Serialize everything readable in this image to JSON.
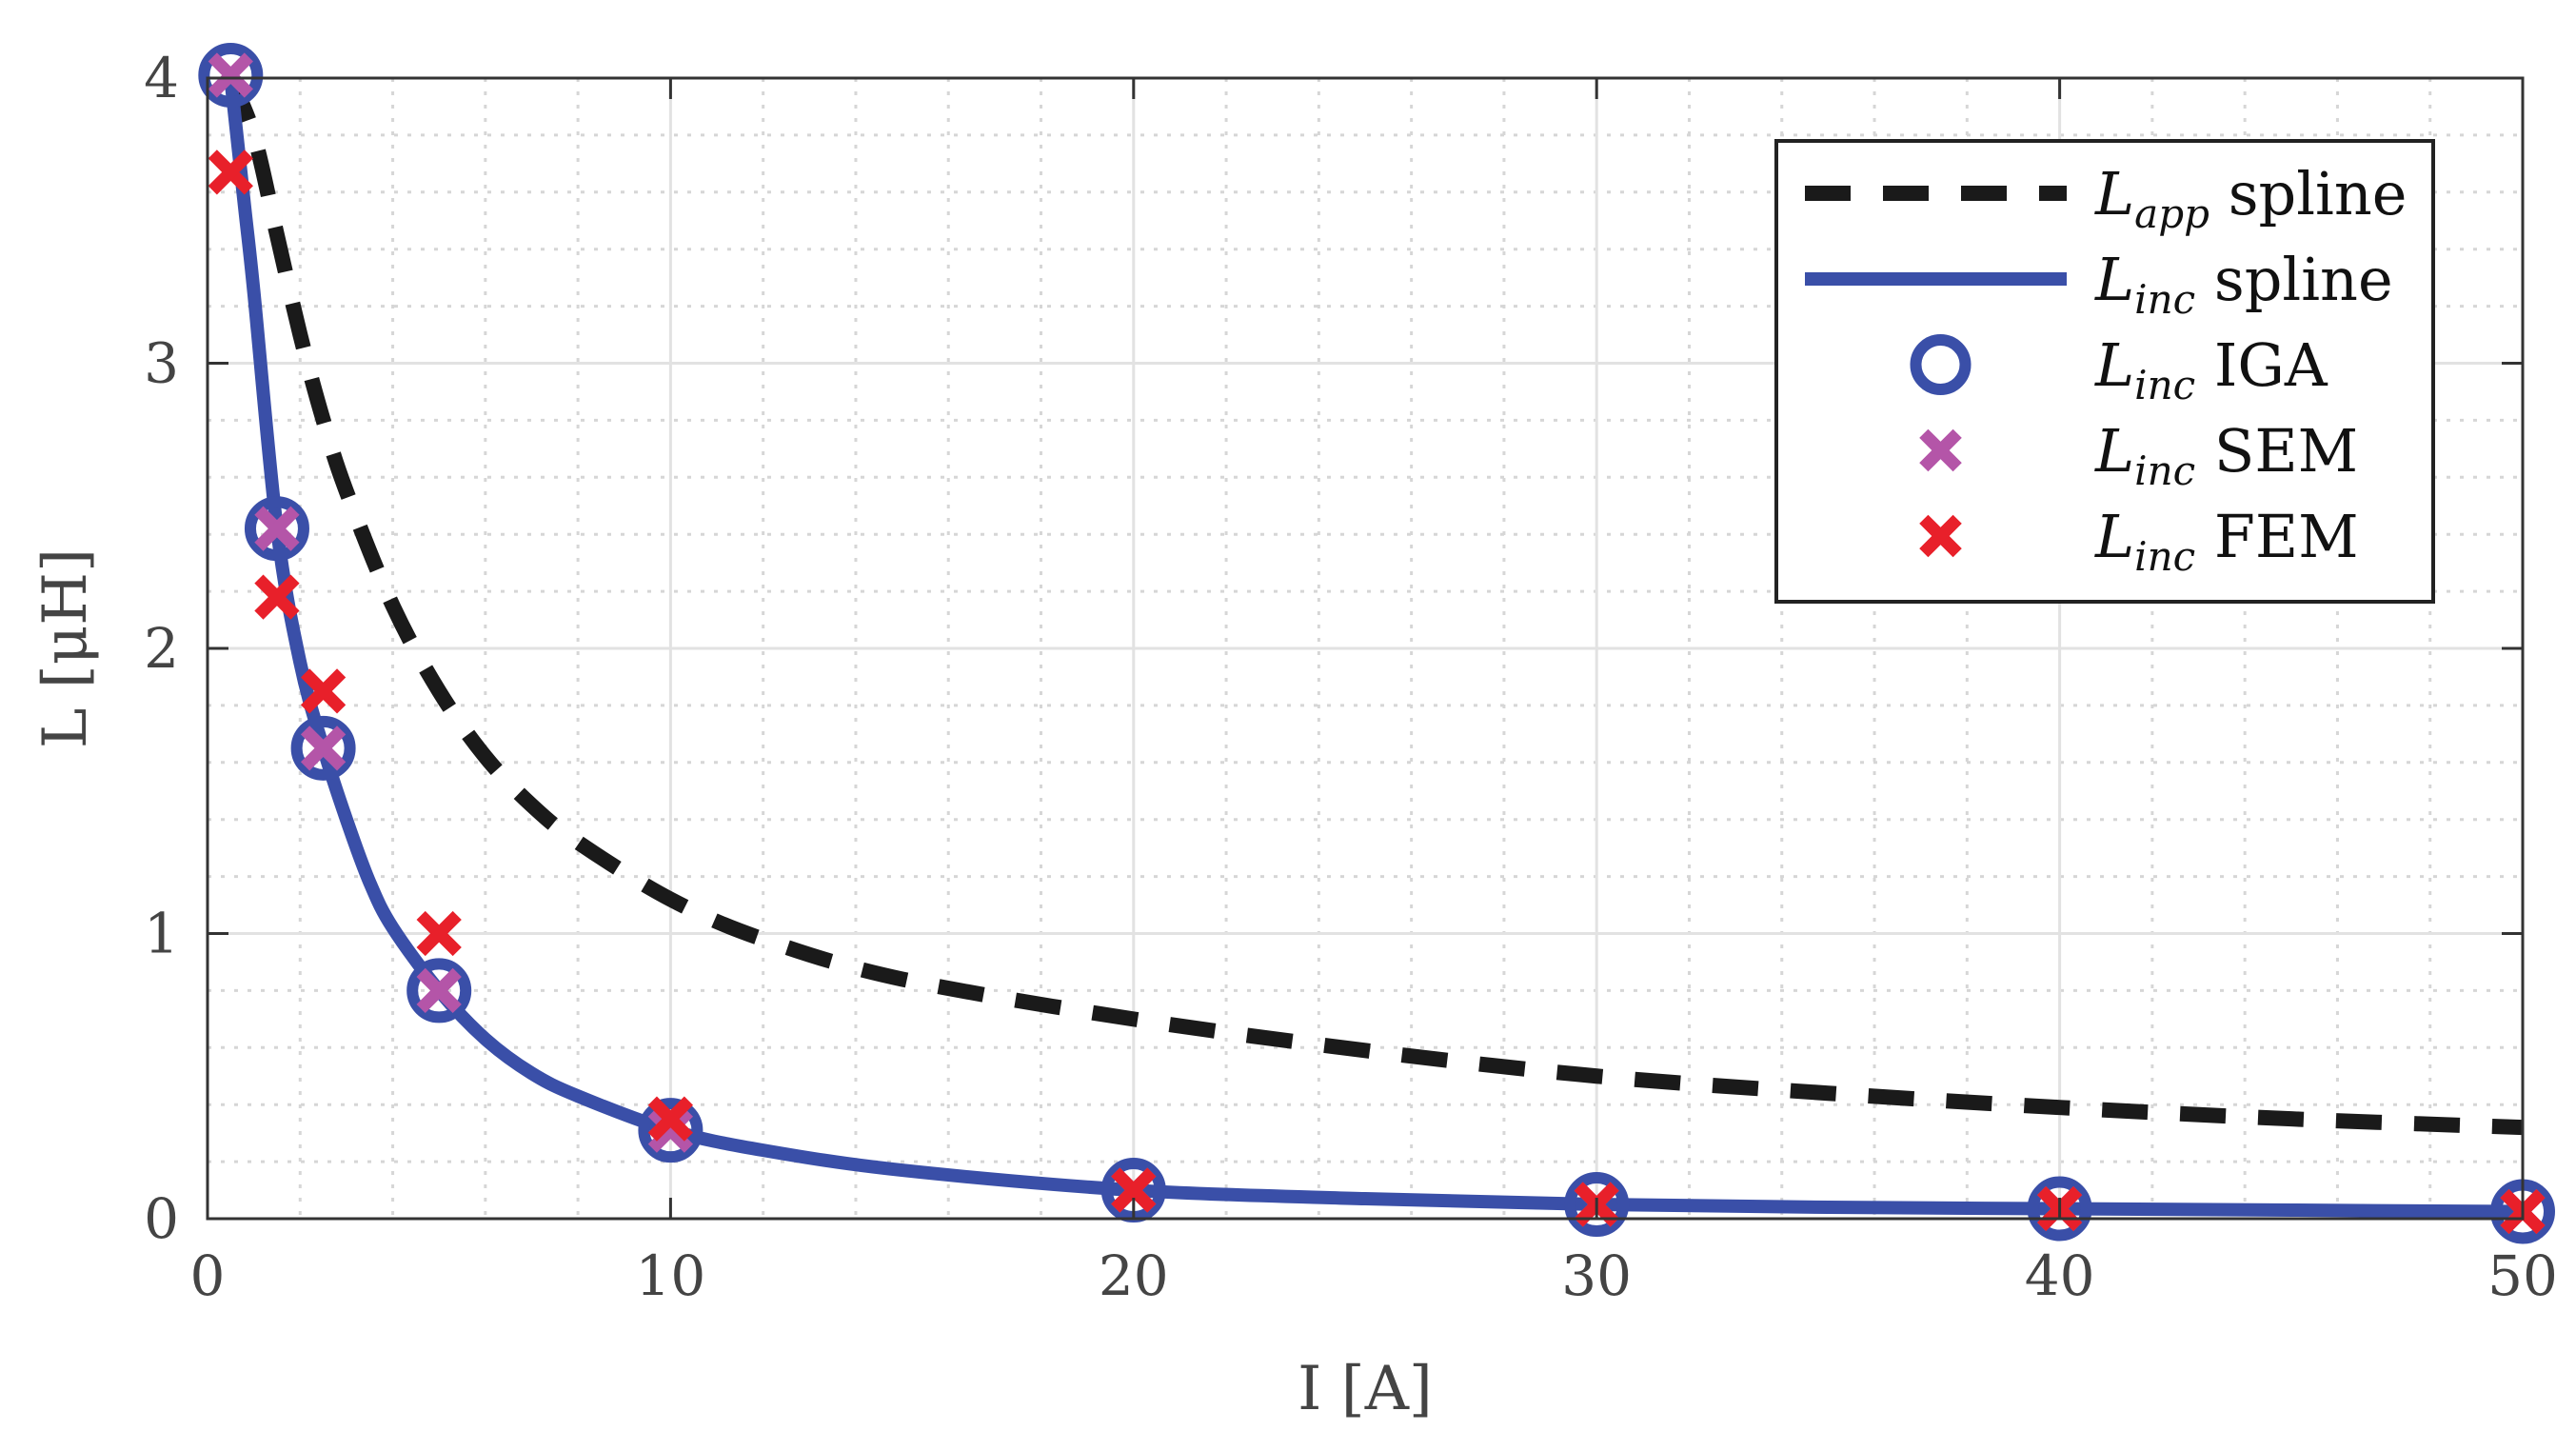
{
  "chart_data": {
    "type": "line",
    "xlabel": "I [A]",
    "ylabel": "L [μH]",
    "xlim": [
      0,
      50
    ],
    "ylim": [
      0,
      4
    ],
    "x_ticks": [
      0,
      10,
      20,
      30,
      40,
      50
    ],
    "y_ticks": [
      0,
      1,
      2,
      3,
      4
    ],
    "x_tick_labels": [
      "0",
      "10",
      "20",
      "30",
      "40",
      "50"
    ],
    "y_tick_labels": [
      "0",
      "1",
      "2",
      "3",
      "4"
    ],
    "grid": true,
    "minor_grid": true,
    "legend_position": "top-right",
    "series": [
      {
        "name": "L_app spline",
        "legend_symbol": "L",
        "legend_subscript": "app",
        "legend_suffix": "spline",
        "kind": "line",
        "line_style": "dashed",
        "color": "#1a1a1a",
        "x": [
          0.5,
          1.0,
          1.5,
          2.0,
          2.5,
          3.0,
          4.0,
          5.0,
          6.0,
          7.0,
          8.0,
          10.0,
          12.0,
          15.0,
          20.0,
          25.0,
          30.0,
          35.0,
          40.0,
          45.0,
          50.0
        ],
        "y": [
          4.0,
          3.8,
          3.45,
          3.1,
          2.8,
          2.55,
          2.15,
          1.85,
          1.62,
          1.45,
          1.32,
          1.12,
          0.98,
          0.84,
          0.7,
          0.59,
          0.5,
          0.44,
          0.39,
          0.35,
          0.32
        ]
      },
      {
        "name": "L_inc spline",
        "legend_symbol": "L",
        "legend_subscript": "inc",
        "legend_suffix": "spline",
        "kind": "line",
        "line_style": "solid",
        "color": "#3a4fa8",
        "x": [
          0.5,
          0.8,
          1.0,
          1.5,
          2.0,
          2.5,
          3.0,
          3.5,
          4.0,
          5.0,
          6.0,
          7.0,
          8.0,
          10.0,
          12.0,
          15.0,
          20.0,
          25.0,
          30.0,
          35.0,
          40.0,
          45.0,
          50.0
        ],
        "y": [
          4.0,
          3.55,
          3.25,
          2.42,
          1.95,
          1.65,
          1.4,
          1.18,
          1.02,
          0.8,
          0.63,
          0.51,
          0.43,
          0.31,
          0.24,
          0.17,
          0.1,
          0.07,
          0.05,
          0.04,
          0.035,
          0.03,
          0.025
        ]
      },
      {
        "name": "L_inc IGA",
        "legend_symbol": "L",
        "legend_subscript": "inc",
        "legend_suffix": "IGA",
        "kind": "scatter",
        "marker": "circle",
        "color": "#3a4fa8",
        "x": [
          0.5,
          1.5,
          2.5,
          5,
          10,
          20,
          30,
          40,
          50
        ],
        "y": [
          4.01,
          2.42,
          1.65,
          0.8,
          0.31,
          0.1,
          0.05,
          0.035,
          0.025
        ]
      },
      {
        "name": "L_inc SEM",
        "legend_symbol": "L",
        "legend_subscript": "inc",
        "legend_suffix": "SEM",
        "kind": "scatter",
        "marker": "x",
        "color": "#b455a8",
        "x": [
          0.5,
          1.5,
          2.5,
          5,
          10,
          20,
          30,
          40,
          50
        ],
        "y": [
          4.01,
          2.42,
          1.65,
          0.8,
          0.31,
          0.1,
          0.05,
          0.035,
          0.025
        ]
      },
      {
        "name": "L_inc FEM",
        "legend_symbol": "L",
        "legend_subscript": "inc",
        "legend_suffix": "FEM",
        "kind": "scatter",
        "marker": "x",
        "color": "#e8202a",
        "x": [
          0.5,
          1.5,
          2.5,
          5,
          10,
          20,
          30,
          40,
          50
        ],
        "y": [
          3.67,
          2.18,
          1.85,
          1.0,
          0.35,
          0.1,
          0.05,
          0.035,
          0.025
        ]
      }
    ]
  }
}
